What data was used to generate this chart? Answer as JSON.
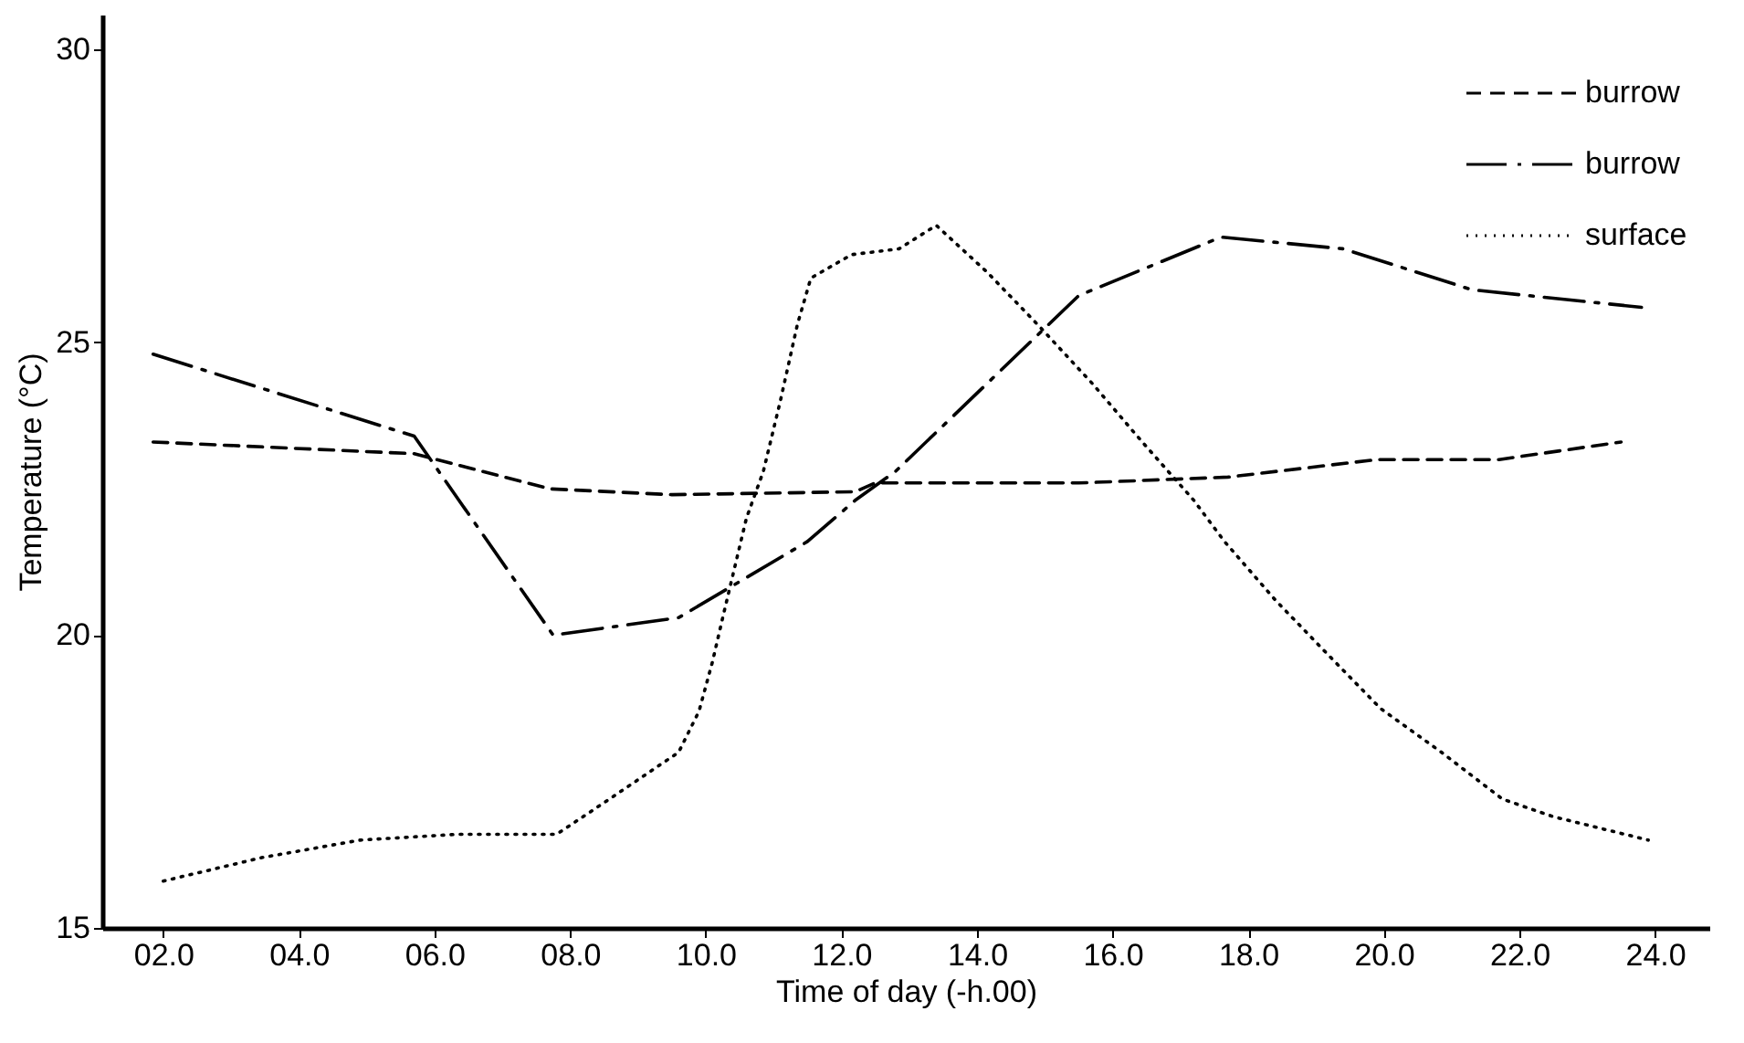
{
  "chart_data": {
    "type": "line",
    "xlabel": "Time of day (-h.00)",
    "ylabel": "Temperature (°C)",
    "xlim": [
      1.1,
      24.8
    ],
    "ylim": [
      15,
      30.6
    ],
    "xticks": [
      {
        "value": 2,
        "label": "02.0"
      },
      {
        "value": 4,
        "label": "04.0"
      },
      {
        "value": 6,
        "label": "06.0"
      },
      {
        "value": 8,
        "label": "08.0"
      },
      {
        "value": 10,
        "label": "10.0"
      },
      {
        "value": 12,
        "label": "12.0"
      },
      {
        "value": 14,
        "label": "14.0"
      },
      {
        "value": 16,
        "label": "16.0"
      },
      {
        "value": 18,
        "label": "18.0"
      },
      {
        "value": 20,
        "label": "20.0"
      },
      {
        "value": 22,
        "label": "22.0"
      },
      {
        "value": 24,
        "label": "24.0"
      }
    ],
    "yticks": [
      15,
      20,
      25,
      30
    ],
    "legend": "top right",
    "series": [
      {
        "name": "burrow",
        "color": "#000000",
        "line_style": "dashed",
        "x": [
          1.85,
          5.7,
          7.7,
          9.5,
          12.2,
          12.5,
          15.5,
          17.7,
          19.9,
          21.7,
          23.5
        ],
        "values": [
          23.3,
          23.1,
          22.5,
          22.4,
          22.45,
          22.6,
          22.6,
          22.7,
          23.0,
          23.0,
          23.3
        ]
      },
      {
        "name": "burrow",
        "color": "#000000",
        "line_style": "dashdot",
        "x": [
          1.85,
          5.7,
          7.75,
          9.6,
          11.5,
          12.2,
          12.8,
          15.5,
          17.6,
          19.4,
          21.3,
          23.8
        ],
        "values": [
          24.8,
          23.4,
          20.0,
          20.3,
          21.6,
          22.3,
          22.8,
          25.8,
          26.8,
          26.6,
          25.9,
          25.6
        ]
      },
      {
        "name": "surface",
        "color": "#000000",
        "line_style": "dotted",
        "x": [
          2,
          3.45,
          4.9,
          6.35,
          7.8,
          8.45,
          9.6,
          9.9,
          10.1,
          10.25,
          10.6,
          10.85,
          11.1,
          11.35,
          11.55,
          12.15,
          12.85,
          13.4,
          14.15,
          14.9,
          15.7,
          16.4,
          17.2,
          17.65,
          18.4,
          19.15,
          19.95,
          20.85,
          21.75,
          22.5,
          23.2,
          23.9
        ],
        "values": [
          15.8,
          16.2,
          16.5,
          16.6,
          16.6,
          17.1,
          18.0,
          18.7,
          19.55,
          20.3,
          22.0,
          22.8,
          24.0,
          25.3,
          26.1,
          26.5,
          26.6,
          27.0,
          26.2,
          25.3,
          24.3,
          23.35,
          22.3,
          21.6,
          20.6,
          19.7,
          18.75,
          18.0,
          17.2,
          16.9,
          16.7,
          16.5
        ]
      }
    ]
  }
}
